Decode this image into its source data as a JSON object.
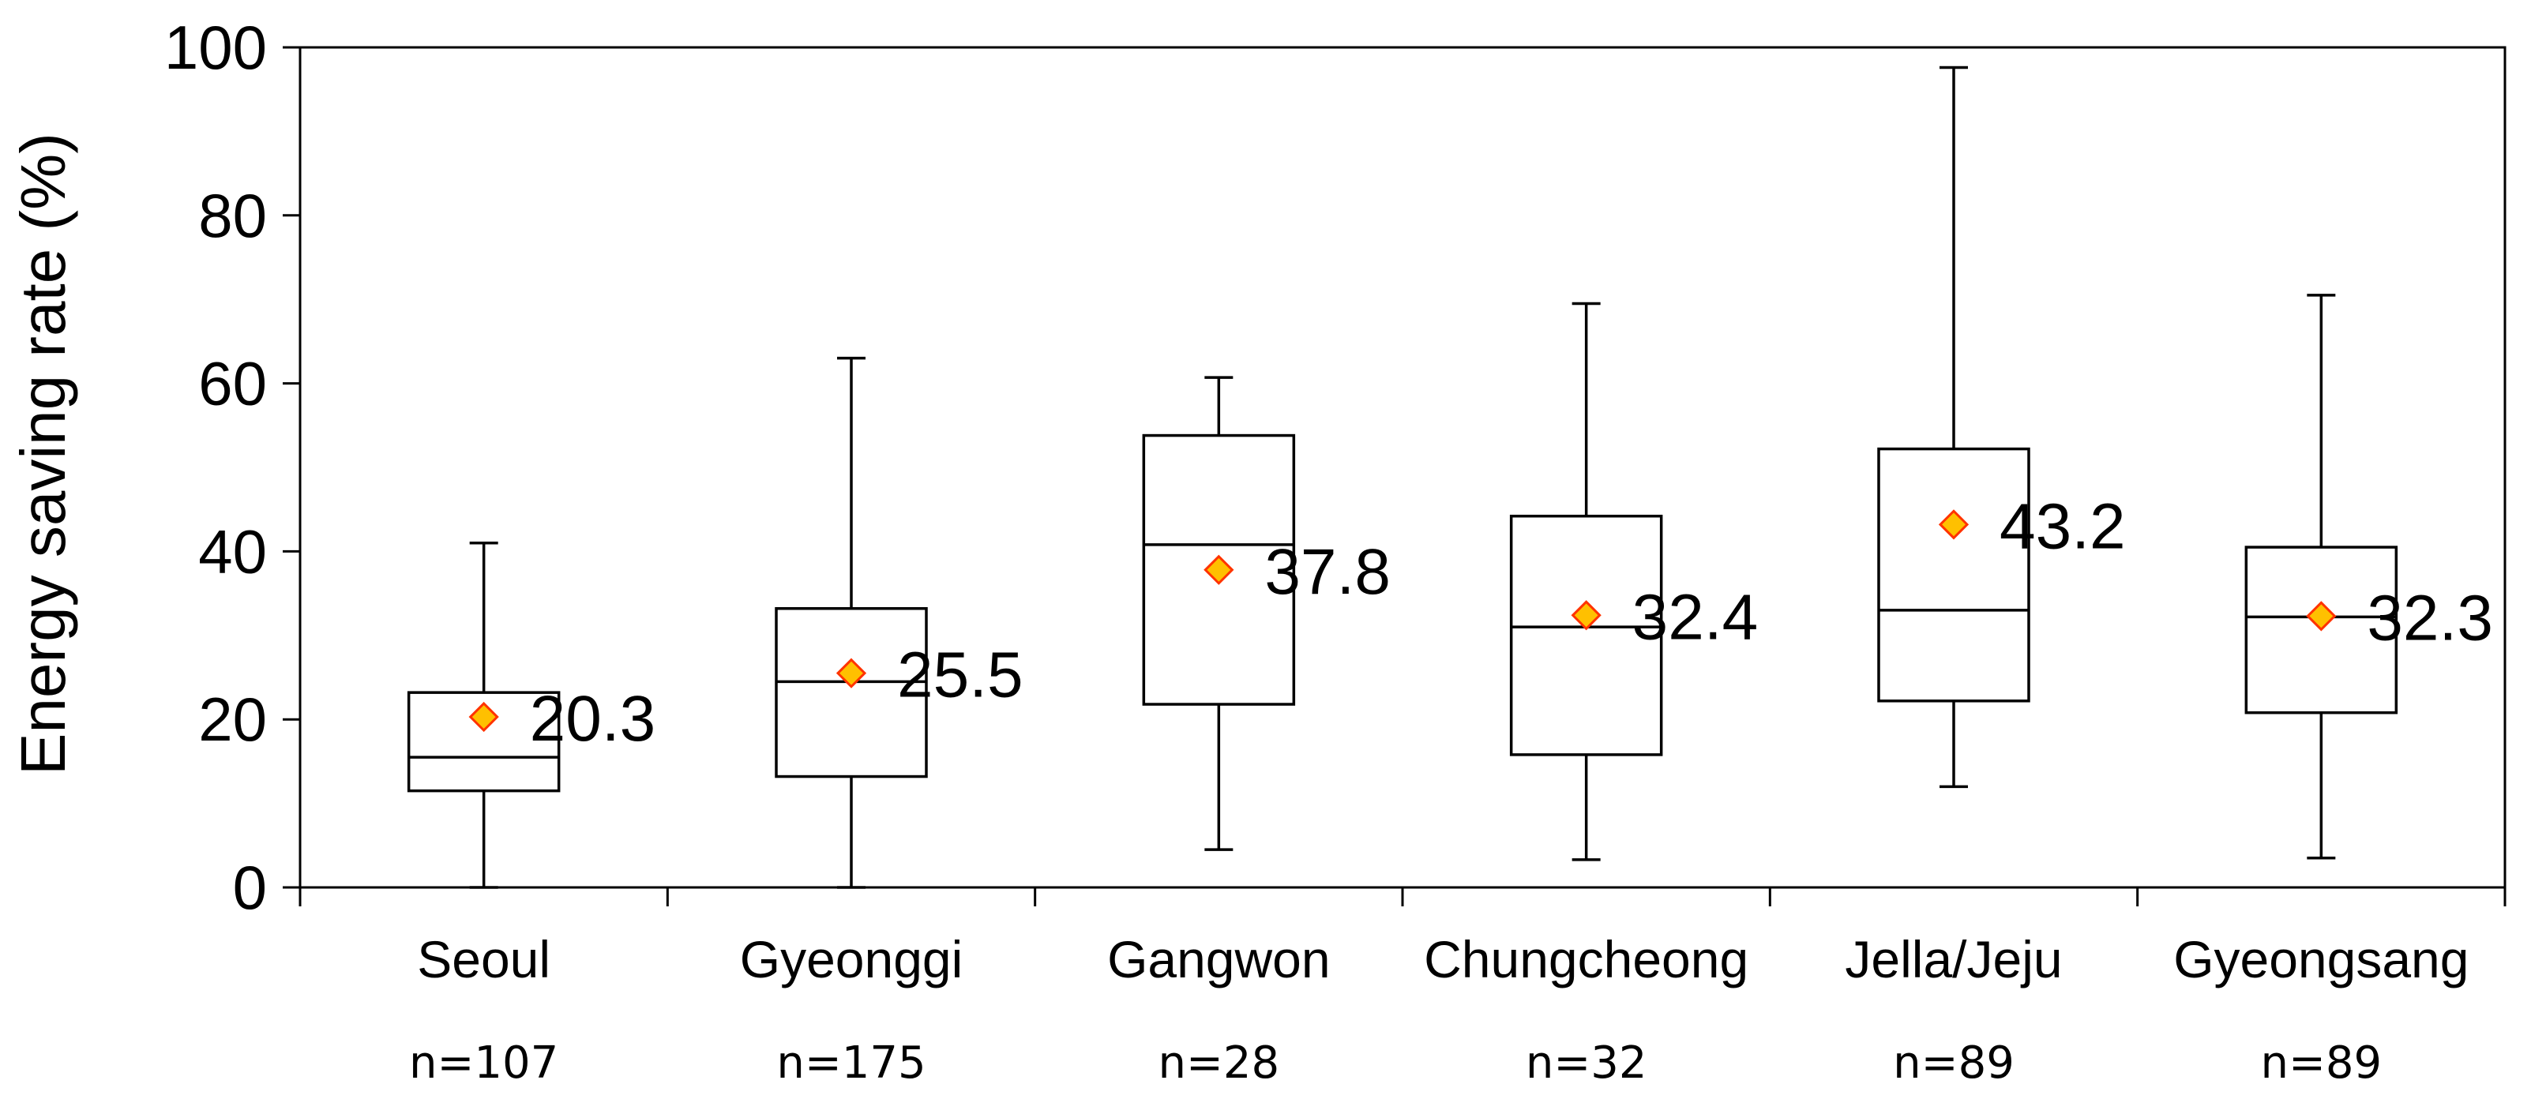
{
  "chart_data": {
    "type": "boxplot",
    "title": "",
    "xlabel": "",
    "ylabel": "Energy saving rate (%)",
    "ylim": [
      0,
      100
    ],
    "yticks": [
      "0",
      "20",
      "40",
      "60",
      "80",
      "100"
    ],
    "grid": false,
    "legend": "none",
    "categories": [
      {
        "name": "Seoul",
        "n_label": "n=107",
        "min": 0,
        "q1": 11.5,
        "median": 15.5,
        "q3": 23.2,
        "max": 41,
        "mean": 20.3,
        "mean_label": "20.3"
      },
      {
        "name": "Gyeonggi",
        "n_label": "n=175",
        "min": 0,
        "q1": 13.2,
        "median": 24.5,
        "q3": 33.2,
        "max": 63,
        "mean": 25.5,
        "mean_label": "25.5"
      },
      {
        "name": "Gangwon",
        "n_label": "n=28",
        "min": 4.5,
        "q1": 21.8,
        "median": 40.8,
        "q3": 53.8,
        "max": 60.7,
        "mean": 37.8,
        "mean_label": "37.8"
      },
      {
        "name": "Chungcheong",
        "n_label": "n=32",
        "min": 3.3,
        "q1": 15.8,
        "median": 31,
        "q3": 44.2,
        "max": 69.5,
        "mean": 32.4,
        "mean_label": "32.4"
      },
      {
        "name": "Jella/Jeju",
        "n_label": "n=89",
        "min": 12,
        "q1": 22.2,
        "median": 33,
        "q3": 52.2,
        "max": 97.6,
        "mean": 43.2,
        "mean_label": "43.2"
      },
      {
        "name": "Gyeongsang",
        "n_label": "n=89",
        "min": 3.5,
        "q1": 20.8,
        "median": 32.2,
        "q3": 40.5,
        "max": 70.5,
        "mean": 32.3,
        "mean_label": "32.3"
      }
    ],
    "mean_marker_fill": "#FFC000",
    "mean_marker_stroke": "#FF3300"
  }
}
